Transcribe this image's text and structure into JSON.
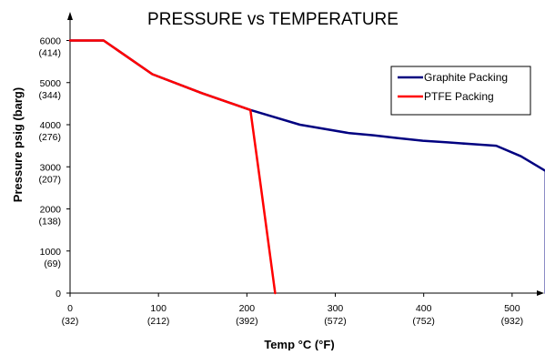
{
  "chart_data": {
    "type": "line",
    "title": "PRESSURE vs TEMPERATURE",
    "xlabel": "Temp °C (°F)",
    "ylabel": "Pressure psig (barg)",
    "xlim": [
      0,
      540
    ],
    "ylim": [
      0,
      6500
    ],
    "grid": false,
    "legend_position": "top-right",
    "x_ticks": [
      {
        "value": 0,
        "label": "0",
        "sublabel": "(32)"
      },
      {
        "value": 100,
        "label": "100",
        "sublabel": "(212)"
      },
      {
        "value": 200,
        "label": "200",
        "sublabel": "(392)"
      },
      {
        "value": 300,
        "label": "300",
        "sublabel": "(572)"
      },
      {
        "value": 400,
        "label": "400",
        "sublabel": "(752)"
      },
      {
        "value": 500,
        "label": "500",
        "sublabel": "(932)"
      }
    ],
    "y_ticks": [
      {
        "value": 0,
        "label": "0",
        "sublabel": ""
      },
      {
        "value": 1000,
        "label": "1000",
        "sublabel": "(69)"
      },
      {
        "value": 2000,
        "label": "2000",
        "sublabel": "(138)"
      },
      {
        "value": 3000,
        "label": "3000",
        "sublabel": "(207)"
      },
      {
        "value": 4000,
        "label": "4000",
        "sublabel": "(276)"
      },
      {
        "value": 5000,
        "label": "5000",
        "sublabel": "(344)"
      },
      {
        "value": 6000,
        "label": "6000",
        "sublabel": "(414)"
      }
    ],
    "series": [
      {
        "name": "Graphite Packing",
        "color": "#000080",
        "points": [
          [
            0,
            6000
          ],
          [
            38,
            6000
          ],
          [
            93,
            5200
          ],
          [
            149,
            4750
          ],
          [
            204,
            4350
          ],
          [
            260,
            4000
          ],
          [
            316,
            3800
          ],
          [
            343,
            3750
          ],
          [
            371,
            3680
          ],
          [
            399,
            3620
          ],
          [
            427,
            3580
          ],
          [
            454,
            3540
          ],
          [
            482,
            3500
          ],
          [
            510,
            3250
          ],
          [
            538,
            2900
          ],
          [
            538,
            0
          ]
        ]
      },
      {
        "name": "PTFE Packing",
        "color": "#ff0000",
        "points": [
          [
            0,
            6000
          ],
          [
            38,
            6000
          ],
          [
            93,
            5200
          ],
          [
            149,
            4750
          ],
          [
            204,
            4350
          ],
          [
            216,
            2500
          ],
          [
            232,
            0
          ]
        ]
      }
    ]
  }
}
